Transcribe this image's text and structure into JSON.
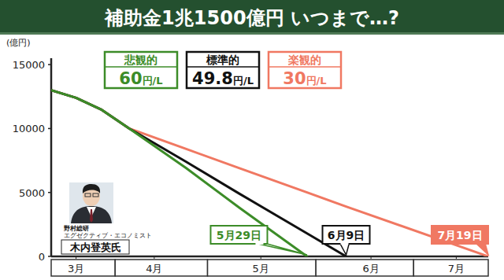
{
  "chart_data": {
    "type": "line",
    "title": "補助金1兆1500億円 いつまで…?",
    "y_label": "(億円)",
    "x": [
      77,
      84,
      91,
      99,
      115,
      130,
      149,
      160,
      200
    ],
    "series": [
      {
        "name": "悲観的",
        "label": "60円/L",
        "color": "#3c8c28",
        "values": [
          13000,
          12400,
          11500,
          10000,
          6900,
          3800,
          0,
          null,
          null
        ]
      },
      {
        "name": "標準的",
        "label": "49.8円/L",
        "color": "#111111",
        "values": [
          13000,
          12400,
          11500,
          10000,
          7400,
          4900,
          1800,
          0,
          null
        ]
      },
      {
        "name": "楽観的",
        "label": "30円/L",
        "color": "#f07862",
        "values": [
          13000,
          12400,
          11500,
          10000,
          8400,
          6900,
          5000,
          3900,
          0
        ]
      }
    ],
    "xlim": [
      77,
      200
    ],
    "xticks": [
      {
        "value": 84,
        "label": "3月"
      },
      {
        "value": 106,
        "label": "4月"
      },
      {
        "value": 136,
        "label": "5月"
      },
      {
        "value": 167,
        "label": "6月"
      },
      {
        "value": 191,
        "label": "7月"
      }
    ],
    "ylim": [
      0,
      15500
    ],
    "yticks": [
      0,
      5000,
      10000,
      15000
    ],
    "grid": false,
    "legend": "top",
    "annotations": [
      {
        "text": "5月29日",
        "x": 149,
        "y": 0
      },
      {
        "text": "6月9日",
        "x": 160,
        "y": 0
      },
      {
        "text": "7月19日",
        "x": 200,
        "y": 0
      }
    ],
    "caption": {
      "org": "野村総研",
      "role": "エグゼクティブ・エコノミスト",
      "name": "木内登英氏"
    }
  }
}
